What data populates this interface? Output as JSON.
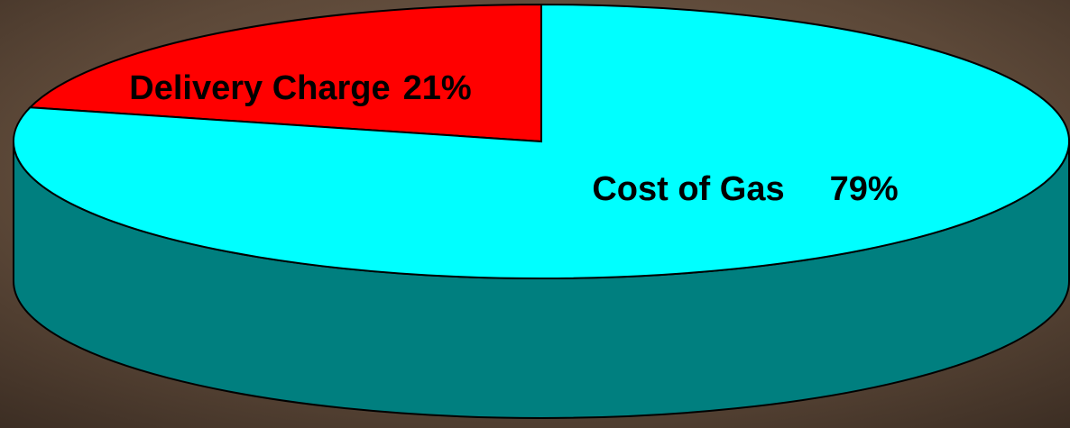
{
  "chart_data": {
    "type": "pie",
    "three_d": true,
    "categories": [
      "Delivery Charge",
      "Cost of Gas"
    ],
    "values": [
      21,
      79
    ],
    "value_labels": [
      "21%",
      "79%"
    ],
    "colors": [
      "#ff0000",
      "#00ffff"
    ]
  }
}
